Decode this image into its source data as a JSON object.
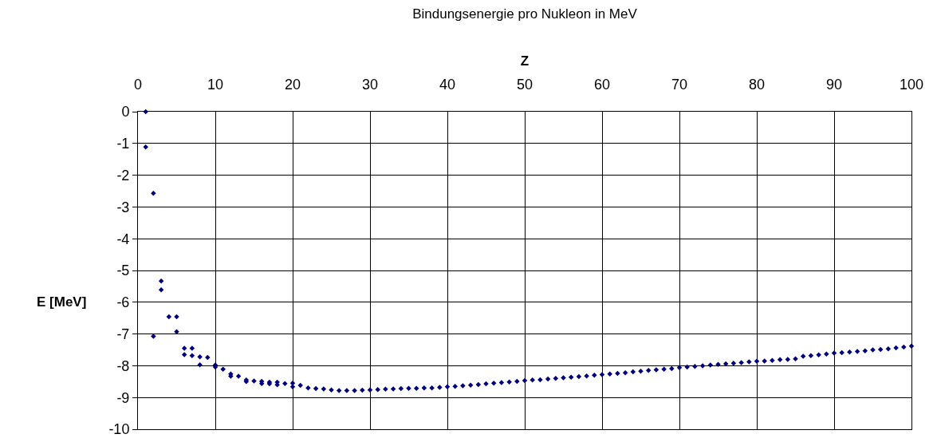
{
  "chart_data": {
    "type": "scatter",
    "title": "Bindungsenergie pro Nukleon in MeV",
    "xlabel": "Z",
    "ylabel": "E [MeV]",
    "x": [
      1,
      1,
      2,
      2,
      3,
      3,
      4,
      5,
      5,
      6,
      6,
      7,
      7,
      8,
      8,
      9,
      10,
      10,
      11,
      12,
      12,
      13,
      14,
      14,
      15,
      16,
      16,
      17,
      17,
      18,
      18,
      19,
      20,
      20,
      21,
      22,
      23,
      24,
      25,
      26,
      27,
      28,
      29,
      30,
      31,
      32,
      33,
      34,
      35,
      36,
      37,
      38,
      39,
      40,
      41,
      42,
      43,
      44,
      45,
      46,
      47,
      48,
      49,
      50,
      51,
      52,
      53,
      54,
      55,
      56,
      57,
      58,
      59,
      60,
      61,
      62,
      63,
      64,
      65,
      66,
      67,
      68,
      69,
      70,
      71,
      72,
      73,
      74,
      75,
      76,
      77,
      78,
      79,
      80,
      81,
      82,
      83,
      84,
      85,
      86,
      87,
      88,
      89,
      90,
      91,
      92,
      93,
      94,
      95,
      96,
      97,
      98,
      99,
      100
    ],
    "series": [
      {
        "color": "#000080",
        "values": [
          0,
          -1.11,
          -2.57,
          -7.07,
          -5.33,
          -5.61,
          -6.46,
          -6.46,
          -6.93,
          -7.45,
          -7.65,
          -7.45,
          -7.68,
          -7.72,
          -7.97,
          -7.74,
          -7.98,
          -8.04,
          -8.11,
          -8.26,
          -8.33,
          -8.33,
          -8.45,
          -8.5,
          -8.48,
          -8.49,
          -8.56,
          -8.52,
          -8.57,
          -8.52,
          -8.6,
          -8.56,
          -8.55,
          -8.66,
          -8.62,
          -8.7,
          -8.72,
          -8.73,
          -8.76,
          -8.78,
          -8.78,
          -8.78,
          -8.77,
          -8.76,
          -8.75,
          -8.74,
          -8.73,
          -8.72,
          -8.71,
          -8.71,
          -8.7,
          -8.7,
          -8.68,
          -8.66,
          -8.65,
          -8.63,
          -8.61,
          -8.59,
          -8.57,
          -8.55,
          -8.53,
          -8.51,
          -8.49,
          -8.47,
          -8.45,
          -8.44,
          -8.42,
          -8.4,
          -8.38,
          -8.36,
          -8.34,
          -8.32,
          -8.3,
          -8.28,
          -8.26,
          -8.24,
          -8.22,
          -8.19,
          -8.17,
          -8.15,
          -8.13,
          -8.11,
          -8.09,
          -8.06,
          -8.04,
          -8.02,
          -8.0,
          -7.98,
          -7.96,
          -7.94,
          -7.92,
          -7.9,
          -7.88,
          -7.86,
          -7.85,
          -7.83,
          -7.81,
          -7.8,
          -7.78,
          -7.7,
          -7.68,
          -7.66,
          -7.63,
          -7.6,
          -7.59,
          -7.57,
          -7.55,
          -7.53,
          -7.5,
          -7.49,
          -7.47,
          -7.44,
          -7.41,
          -7.38
        ]
      }
    ],
    "xlim": [
      0,
      100
    ],
    "xticks": [
      0,
      10,
      20,
      30,
      40,
      50,
      60,
      70,
      80,
      90,
      100
    ],
    "ylim": [
      -10,
      0
    ],
    "yticks": [
      0,
      -1,
      -2,
      -3,
      -4,
      -5,
      -6,
      -7,
      -8,
      -9,
      -10
    ],
    "grid": true,
    "marker": "diamond"
  }
}
